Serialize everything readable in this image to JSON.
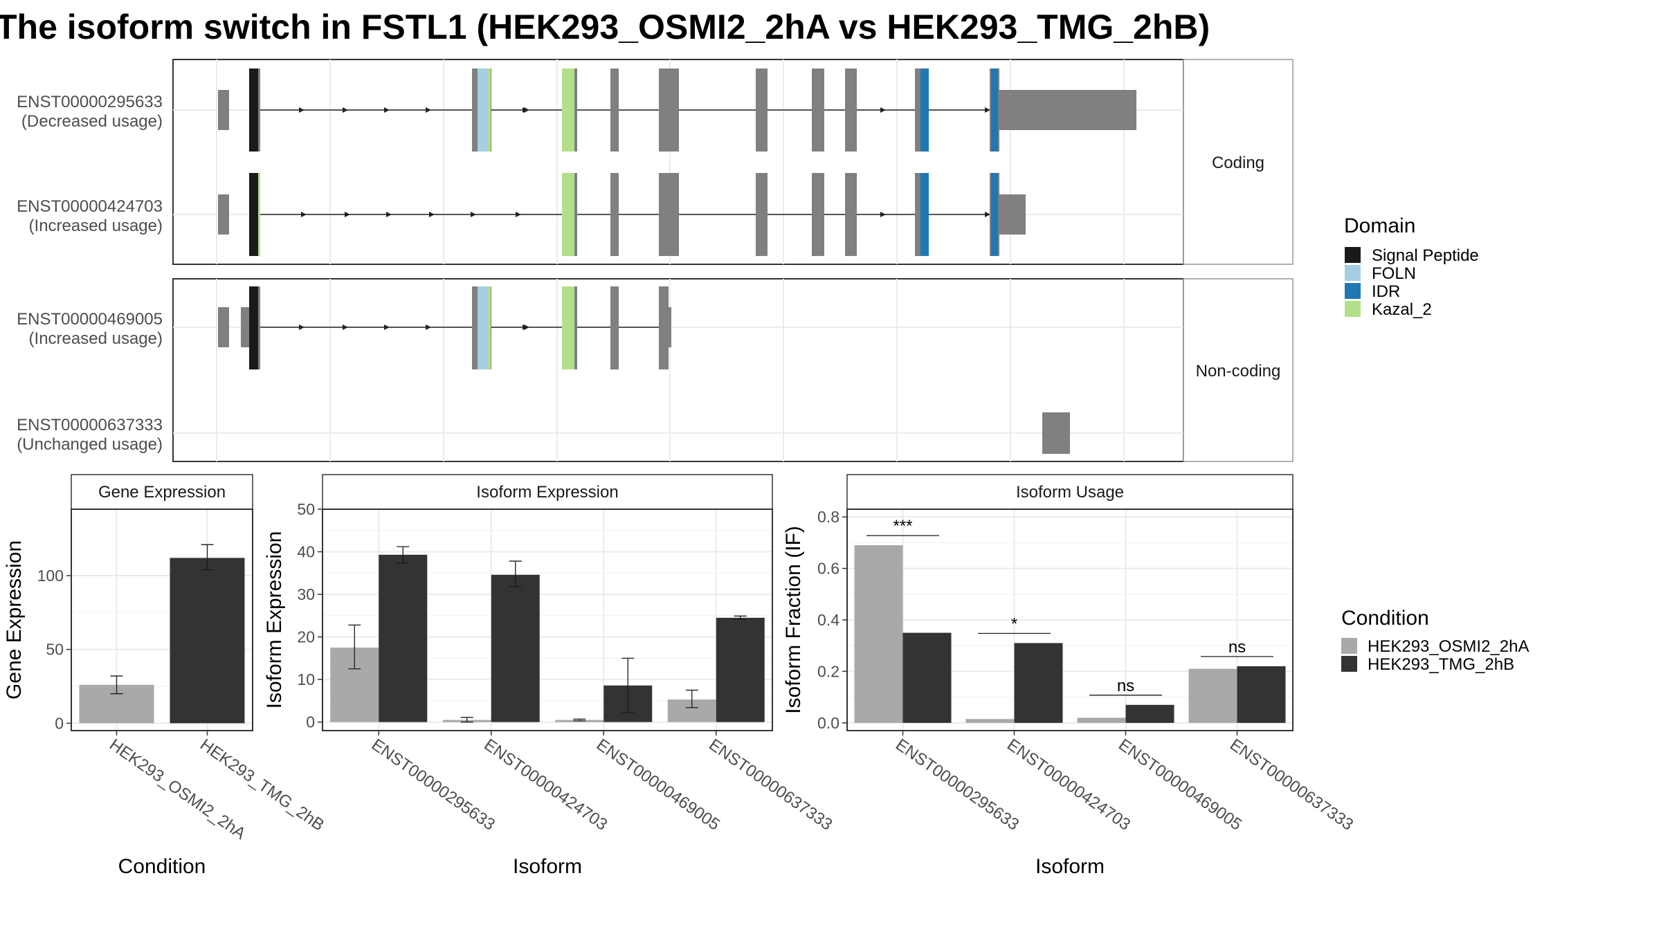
{
  "title": "The isoform switch in FSTL1 (HEK293_OSMI2_2hA vs HEK293_TMG_2hB)",
  "colors": {
    "cond1": "#a9a9a9",
    "cond2": "#333333",
    "exon": "#808080",
    "signal_peptide": "#1a1a1a",
    "foln": "#a6cee3",
    "idr": "#1f78b4",
    "kazal_2": "#b2df8a",
    "panel_border": "#333333",
    "grid": "#ebebeb"
  },
  "structure": {
    "facets": [
      "Coding",
      "Non-coding"
    ],
    "transcripts": [
      {
        "id": "ENST00000295633",
        "usage": "(Decreased usage)",
        "facet": "Coding"
      },
      {
        "id": "ENST00000424703",
        "usage": "(Increased usage)",
        "facet": "Coding"
      },
      {
        "id": "ENST00000469005",
        "usage": "(Increased usage)",
        "facet": "Non-coding"
      },
      {
        "id": "ENST00000637333",
        "usage": "(Unchanged usage)",
        "facet": "Non-coding"
      }
    ]
  },
  "legend_domain": {
    "title": "Domain",
    "items": [
      {
        "label": "Signal Peptide",
        "color": "#1a1a1a"
      },
      {
        "label": "FOLN",
        "color": "#a6cee3"
      },
      {
        "label": "IDR",
        "color": "#1f78b4"
      },
      {
        "label": "Kazal_2",
        "color": "#b2df8a"
      }
    ]
  },
  "legend_condition": {
    "title": "Condition",
    "items": [
      {
        "label": "HEK293_OSMI2_2hA",
        "color": "#a9a9a9"
      },
      {
        "label": "HEK293_TMG_2hB",
        "color": "#333333"
      }
    ]
  },
  "chart_data": [
    {
      "type": "bar",
      "title": "Gene Expression",
      "xlabel": "Condition",
      "ylabel": "Gene Expression",
      "ylim": [
        -5,
        145
      ],
      "yticks": [
        0,
        50,
        100
      ],
      "categories": [
        "HEK293_OSMI2_2hA",
        "HEK293_TMG_2hB"
      ],
      "values": [
        26,
        112
      ],
      "errors": [
        [
          20,
          32
        ],
        [
          104,
          121
        ]
      ]
    },
    {
      "type": "bar",
      "title": "Isoform Expression",
      "xlabel": "Isoform",
      "ylabel": "Isoform Expression",
      "ylim": [
        -2,
        50
      ],
      "yticks": [
        0,
        10,
        20,
        30,
        40,
        50
      ],
      "categories": [
        "ENST00000295633",
        "ENST00000424703",
        "ENST00000469005",
        "ENST00000637333"
      ],
      "series": [
        {
          "name": "HEK293_OSMI2_2hA",
          "values": [
            17.5,
            0.5,
            0.5,
            5.3
          ],
          "errors": [
            [
              12.5,
              22.8
            ],
            [
              0,
              1.1
            ],
            [
              0.3,
              0.7
            ],
            [
              3.4,
              7.5
            ]
          ]
        },
        {
          "name": "HEK293_TMG_2hB",
          "values": [
            39.3,
            34.6,
            8.6,
            24.5
          ],
          "errors": [
            [
              37.3,
              41.2
            ],
            [
              31.8,
              37.8
            ],
            [
              2.2,
              15.0
            ],
            [
              24.1,
              24.9
            ]
          ]
        }
      ]
    },
    {
      "type": "bar",
      "title": "Isoform Usage",
      "xlabel": "Isoform",
      "ylabel": "Isoform Fraction (IF)",
      "ylim": [
        -0.03,
        0.83
      ],
      "yticks": [
        "0.0",
        "0.2",
        "0.4",
        "0.6",
        "0.8"
      ],
      "categories": [
        "ENST00000295633",
        "ENST00000424703",
        "ENST00000469005",
        "ENST00000637333"
      ],
      "series": [
        {
          "name": "HEK293_OSMI2_2hA",
          "values": [
            0.69,
            0.015,
            0.02,
            0.21
          ]
        },
        {
          "name": "HEK293_TMG_2hB",
          "values": [
            0.35,
            0.31,
            0.07,
            0.22
          ]
        }
      ],
      "significance": [
        "***",
        "*",
        "ns",
        "ns"
      ]
    }
  ]
}
